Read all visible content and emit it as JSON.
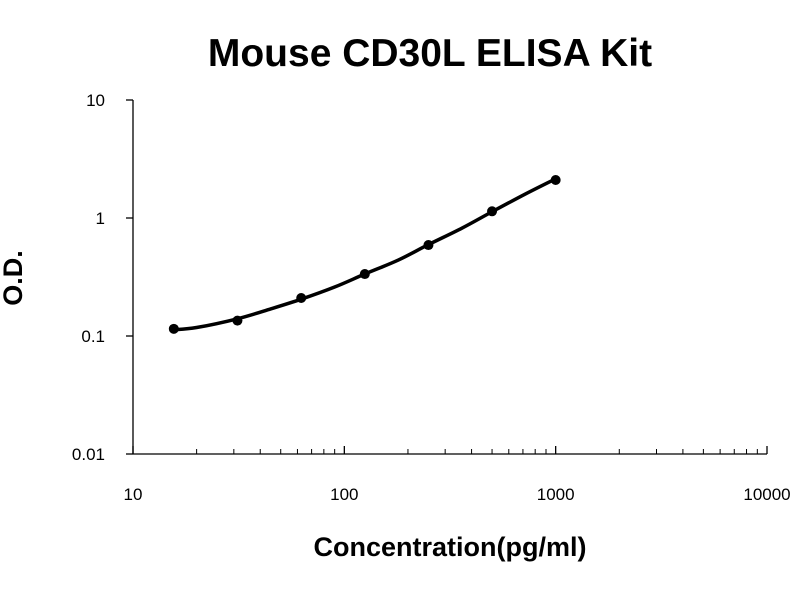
{
  "chart_data": {
    "type": "scatter",
    "title": "Mouse CD30L ELISA Kit",
    "xlabel": "Concentration(pg/ml)",
    "ylabel": "O.D.",
    "x_scale": "log",
    "y_scale": "log",
    "xlim": [
      10,
      10000
    ],
    "ylim": [
      0.01,
      10
    ],
    "x_ticks": [
      "10",
      "100",
      "1000",
      "10000"
    ],
    "y_ticks": [
      "0.01",
      "0.1",
      "1",
      "10"
    ],
    "grid": false,
    "legend": "none",
    "series": [
      {
        "x": [
          15.6,
          31.2,
          62.5,
          125,
          250,
          500,
          1000
        ],
        "y": [
          0.115,
          0.135,
          0.21,
          0.335,
          0.59,
          1.14,
          2.1
        ]
      }
    ],
    "fit_curve": {
      "x": [
        15.6,
        20,
        31.2,
        45,
        62.5,
        90,
        125,
        180,
        250,
        360,
        500,
        720,
        1000
      ],
      "y": [
        0.113,
        0.118,
        0.14,
        0.17,
        0.205,
        0.26,
        0.335,
        0.44,
        0.595,
        0.82,
        1.13,
        1.6,
        2.15
      ]
    },
    "colors": {
      "marker": "#000000",
      "line": "#000000",
      "axis": "#000000"
    }
  }
}
